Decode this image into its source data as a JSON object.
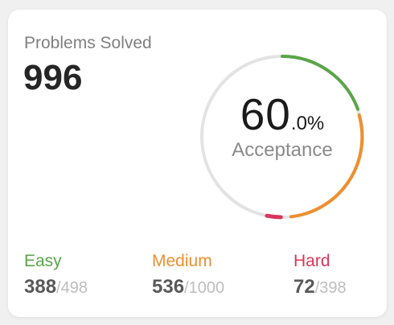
{
  "colors": {
    "easy": "#5aa54a",
    "medium": "#ee8f2f",
    "hard": "#d9365b",
    "track": "#e3e3e3"
  },
  "card": {
    "title": "Problems Solved",
    "total": "996"
  },
  "acceptance": {
    "integer": "60",
    "decimal": ".0%",
    "label": "Acceptance",
    "value_percent": 60.0
  },
  "stats": {
    "easy": {
      "label": "Easy",
      "solved": "388",
      "separator": "/",
      "total": "498"
    },
    "medium": {
      "label": "Medium",
      "solved": "536",
      "separator": "/",
      "total": "1000"
    },
    "hard": {
      "label": "Hard",
      "solved": "72",
      "separator": "/",
      "total": "398"
    }
  }
}
